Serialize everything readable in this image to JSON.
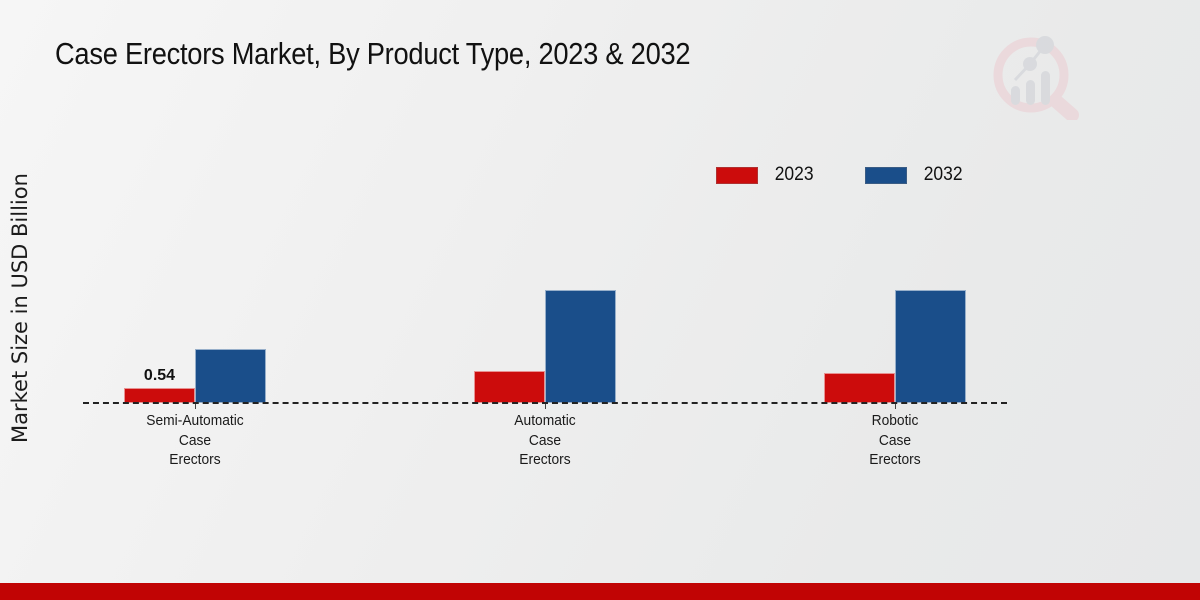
{
  "title": "Case Erectors Market, By Product Type, 2023 & 2032",
  "y_axis_label": "Market Size in USD Billion",
  "legend": [
    {
      "label": "2023",
      "color": "#cc0c0c"
    },
    {
      "label": "2032",
      "color": "#1a4e8a"
    }
  ],
  "colors": {
    "series_2023": "#cc0c0c",
    "series_2032": "#1a4e8a",
    "footer_accent": "#c10404",
    "baseline": "#222222",
    "background": "#ececed"
  },
  "chart_data": {
    "type": "bar",
    "categories": [
      "Semi-Automatic\nCase\nErectors",
      "Automatic\nCase\nErectors",
      "Robotic\nCase\nErectors"
    ],
    "series": [
      {
        "name": "2023",
        "color": "#cc0c0c",
        "values": [
          0.54,
          1.2,
          1.1
        ]
      },
      {
        "name": "2032",
        "color": "#1a4e8a",
        "values": [
          2.0,
          4.2,
          4.2
        ]
      }
    ],
    "value_label": "0.54",
    "xlabel": "",
    "ylabel": "Market Size in USD Billion",
    "ylim": [
      0,
      5
    ],
    "grid": false,
    "legend_position": "top-right",
    "baseline_style": "dashed"
  },
  "watermark_icon": "magnifier-bar-chart-logo"
}
